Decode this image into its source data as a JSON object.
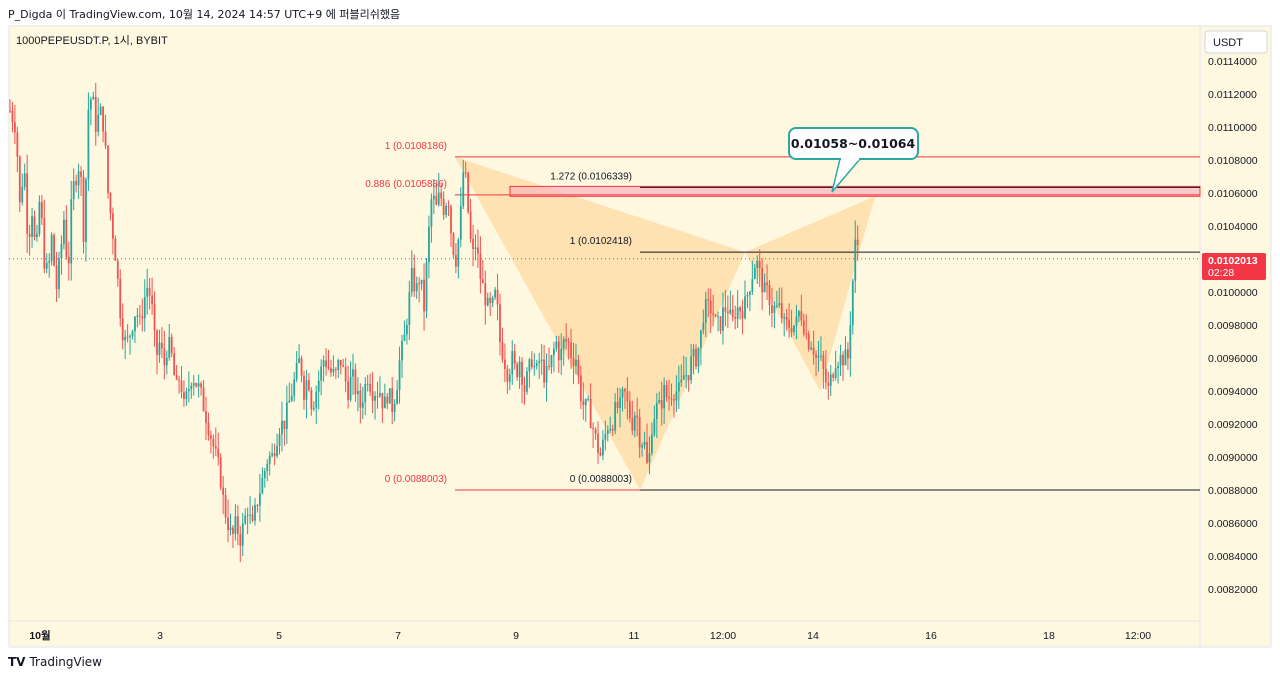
{
  "header": {
    "title": "P_Digda 이 TradingView.com, 10월 14, 2024 14:57 UTC+9 에 퍼블리쉬했음"
  },
  "symbol": {
    "label": "1000PEPEUSDT.P, 1시, BYBIT"
  },
  "price_axis": {
    "currency": "USDT"
  },
  "last_price": {
    "value": "0.0102013",
    "countdown": "02:28"
  },
  "callout": {
    "text": "0.01058~0.01064"
  },
  "footer": {
    "brand": "TradingView"
  },
  "colors": {
    "bull": "#26a69a",
    "bear": "#ef5350",
    "fib": "#f23645",
    "pattern_fill": "#ffd08a",
    "zone_fill": "#f8b8be",
    "callout_border": "#2aa8a0",
    "background": "#fff8e1"
  },
  "chart_data": {
    "type": "candlestick",
    "symbol": "1000PEPEUSDT.P",
    "timeframe": "1시",
    "exchange": "BYBIT",
    "ylim": [
      0.008,
      0.0115
    ],
    "y_ticks": [
      "0.0114000",
      "0.0112000",
      "0.0110000",
      "0.0108000",
      "0.0106000",
      "0.0104000",
      "0.0102000",
      "0.0100000",
      "0.0098000",
      "0.0096000",
      "0.0094000",
      "0.0092000",
      "0.0090000",
      "0.0088000",
      "0.0086000",
      "0.0084000",
      "0.0082000"
    ],
    "x_ticks": [
      "10월",
      "3",
      "5",
      "7",
      "9",
      "11",
      "12:00",
      "14",
      "16",
      "18",
      "12:00"
    ],
    "fib_levels": [
      {
        "label": "1 (0.0108186)",
        "value": 0.0108186
      },
      {
        "label": "0.886 (0.0105886)",
        "value": 0.0105886
      },
      {
        "label": "0 (0.0088003)",
        "value": 0.0088003
      }
    ],
    "retracement_levels": [
      {
        "label": "1.272 (0.0106339)",
        "value": 0.0106339
      },
      {
        "label": "1 (0.0102418)",
        "value": 0.0102418
      },
      {
        "label": "0 (0.0088003)",
        "value": 0.0088003
      }
    ],
    "target_zone": [
      0.01058,
      0.01064
    ],
    "harmonic_points": [
      {
        "x": "10월 8",
        "y": 0.0108186
      },
      {
        "x": "10월 11",
        "y": 0.0088003
      },
      {
        "x": "10월 12 12:00",
        "y": 0.0102418
      },
      {
        "x": "10월 14",
        "y": 0.0094
      },
      {
        "x": "10월 15",
        "y": 0.01058
      }
    ],
    "price_path": [
      [
        0,
        0.0111
      ],
      [
        6,
        0.011
      ],
      [
        10,
        0.0105
      ],
      [
        14,
        0.0108
      ],
      [
        18,
        0.0103
      ],
      [
        22,
        0.0105
      ],
      [
        26,
        0.0102
      ],
      [
        30,
        0.0106
      ],
      [
        34,
        0.0102
      ],
      [
        38,
        0.0101
      ],
      [
        42,
        0.01035
      ],
      [
        46,
        0.01
      ],
      [
        50,
        0.0102
      ],
      [
        54,
        0.01045
      ],
      [
        58,
        0.0101
      ],
      [
        62,
        0.0106
      ],
      [
        66,
        0.0107
      ],
      [
        70,
        0.0108
      ],
      [
        74,
        0.0103
      ],
      [
        78,
        0.0111
      ],
      [
        82,
        0.0112
      ],
      [
        86,
        0.011
      ],
      [
        90,
        0.0111
      ],
      [
        94,
        0.011
      ],
      [
        98,
        0.0106
      ],
      [
        102,
        0.0104
      ],
      [
        106,
        0.0102
      ],
      [
        110,
        0.0099
      ],
      [
        114,
        0.0097
      ],
      [
        118,
        0.0097
      ],
      [
        122,
        0.0098
      ],
      [
        126,
        0.0099
      ],
      [
        130,
        0.0098
      ],
      [
        134,
        0.00995
      ],
      [
        138,
        0.01005
      ],
      [
        142,
        0.0099
      ],
      [
        146,
        0.0096
      ],
      [
        150,
        0.0097
      ],
      [
        154,
        0.00955
      ],
      [
        158,
        0.0097
      ],
      [
        162,
        0.0096
      ],
      [
        166,
        0.0094
      ],
      [
        170,
        0.0095
      ],
      [
        174,
        0.0093
      ],
      [
        178,
        0.0094
      ],
      [
        182,
        0.0095
      ],
      [
        186,
        0.00945
      ],
      [
        190,
        0.0094
      ],
      [
        194,
        0.0093
      ],
      [
        198,
        0.0092
      ],
      [
        202,
        0.0091
      ],
      [
        206,
        0.009
      ],
      [
        210,
        0.0089
      ],
      [
        214,
        0.0087
      ],
      [
        218,
        0.0086
      ],
      [
        222,
        0.0085
      ],
      [
        226,
        0.0086
      ],
      [
        230,
        0.0085
      ],
      [
        234,
        0.0086
      ],
      [
        238,
        0.0087
      ],
      [
        242,
        0.00855
      ],
      [
        246,
        0.0087
      ],
      [
        250,
        0.0088
      ],
      [
        254,
        0.0089
      ],
      [
        258,
        0.009
      ],
      [
        262,
        0.009
      ],
      [
        266,
        0.0091
      ],
      [
        270,
        0.0092
      ],
      [
        274,
        0.0092
      ],
      [
        278,
        0.0093
      ],
      [
        282,
        0.0094
      ],
      [
        286,
        0.0095
      ],
      [
        290,
        0.0096
      ],
      [
        294,
        0.0094
      ],
      [
        298,
        0.0095
      ],
      [
        302,
        0.0093
      ],
      [
        306,
        0.0094
      ],
      [
        310,
        0.0095
      ],
      [
        314,
        0.0096
      ],
      [
        318,
        0.00955
      ],
      [
        322,
        0.0095
      ],
      [
        326,
        0.0095
      ],
      [
        330,
        0.0096
      ],
      [
        334,
        0.0095
      ],
      [
        338,
        0.0094
      ],
      [
        342,
        0.0095
      ],
      [
        346,
        0.0094
      ],
      [
        350,
        0.0093
      ],
      [
        354,
        0.0094
      ],
      [
        358,
        0.0095
      ],
      [
        362,
        0.0094
      ],
      [
        366,
        0.0094
      ],
      [
        370,
        0.0094
      ],
      [
        374,
        0.0093
      ],
      [
        378,
        0.0094
      ],
      [
        382,
        0.0093
      ],
      [
        386,
        0.0094
      ],
      [
        390,
        0.0096
      ],
      [
        394,
        0.0097
      ],
      [
        398,
        0.0099
      ],
      [
        402,
        0.0101
      ],
      [
        406,
        0.01
      ],
      [
        410,
        0.0101
      ],
      [
        414,
        0.0099
      ],
      [
        418,
        0.0103
      ],
      [
        422,
        0.0106
      ],
      [
        426,
        0.0105
      ],
      [
        430,
        0.0106
      ],
      [
        434,
        0.0105
      ],
      [
        438,
        0.0106
      ],
      [
        442,
        0.0103
      ],
      [
        446,
        0.0102
      ],
      [
        450,
        0.0104
      ],
      [
        454,
        0.0108
      ],
      [
        458,
        0.0105
      ],
      [
        462,
        0.0102
      ],
      [
        466,
        0.0103
      ],
      [
        470,
        0.0101
      ],
      [
        474,
        0.01
      ],
      [
        478,
        0.0099
      ],
      [
        482,
        0.0099
      ],
      [
        486,
        0.01
      ],
      [
        490,
        0.0097
      ],
      [
        494,
        0.0096
      ],
      [
        498,
        0.0095
      ],
      [
        502,
        0.0096
      ],
      [
        506,
        0.0095
      ],
      [
        510,
        0.0096
      ],
      [
        514,
        0.0094
      ],
      [
        518,
        0.0095
      ],
      [
        522,
        0.0096
      ],
      [
        526,
        0.0095
      ],
      [
        530,
        0.0096
      ],
      [
        534,
        0.0095
      ],
      [
        538,
        0.0095
      ],
      [
        542,
        0.0096
      ],
      [
        546,
        0.0097
      ],
      [
        550,
        0.0096
      ],
      [
        554,
        0.0097
      ],
      [
        558,
        0.0097
      ],
      [
        562,
        0.0096
      ],
      [
        566,
        0.0096
      ],
      [
        570,
        0.0094
      ],
      [
        574,
        0.0093
      ],
      [
        578,
        0.0093
      ],
      [
        582,
        0.0092
      ],
      [
        586,
        0.0091
      ],
      [
        590,
        0.009
      ],
      [
        594,
        0.0091
      ],
      [
        598,
        0.0092
      ],
      [
        602,
        0.0092
      ],
      [
        606,
        0.0093
      ],
      [
        610,
        0.0093
      ],
      [
        614,
        0.0094
      ],
      [
        618,
        0.0093
      ],
      [
        622,
        0.0092
      ],
      [
        626,
        0.0093
      ],
      [
        630,
        0.0091
      ],
      [
        634,
        0.0091
      ],
      [
        638,
        0.0089
      ],
      [
        642,
        0.0092
      ],
      [
        646,
        0.0093
      ],
      [
        650,
        0.0093
      ],
      [
        654,
        0.0094
      ],
      [
        658,
        0.00935
      ],
      [
        662,
        0.0094
      ],
      [
        666,
        0.0094
      ],
      [
        670,
        0.0094
      ],
      [
        674,
        0.0095
      ],
      [
        678,
        0.0095
      ],
      [
        682,
        0.0096
      ],
      [
        686,
        0.0096
      ],
      [
        690,
        0.0097
      ],
      [
        694,
        0.0099
      ],
      [
        698,
        0.0099
      ],
      [
        702,
        0.0099
      ],
      [
        706,
        0.0098
      ],
      [
        710,
        0.0098
      ],
      [
        714,
        0.0099
      ],
      [
        718,
        0.0099
      ],
      [
        722,
        0.0098
      ],
      [
        726,
        0.0099
      ],
      [
        730,
        0.0099
      ],
      [
        734,
        0.0099
      ],
      [
        738,
        0.01
      ],
      [
        742,
        0.0101
      ],
      [
        746,
        0.0102
      ],
      [
        750,
        0.0101
      ],
      [
        754,
        0.01
      ],
      [
        758,
        0.01
      ],
      [
        762,
        0.0099
      ],
      [
        766,
        0.0099
      ],
      [
        770,
        0.0099
      ],
      [
        774,
        0.0098
      ],
      [
        778,
        0.0098
      ],
      [
        782,
        0.0098
      ],
      [
        786,
        0.0098
      ],
      [
        790,
        0.0099
      ],
      [
        794,
        0.0098
      ],
      [
        798,
        0.0097
      ],
      [
        802,
        0.0097
      ],
      [
        806,
        0.0096
      ],
      [
        810,
        0.0096
      ],
      [
        814,
        0.0095
      ],
      [
        818,
        0.0094
      ],
      [
        822,
        0.0095
      ],
      [
        826,
        0.0096
      ],
      [
        830,
        0.0096
      ],
      [
        834,
        0.0096
      ],
      [
        838,
        0.0096
      ],
      [
        842,
        0.01
      ],
      [
        846,
        0.01035
      ],
      [
        850,
        0.0102013
      ]
    ]
  }
}
